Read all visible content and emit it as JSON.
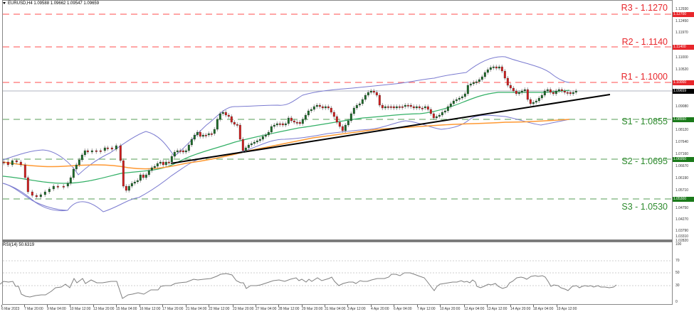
{
  "header": {
    "symbol_info": "EURUSD,H4  1.09588 1.09662 1.09547 1.09659"
  },
  "rsi_panel": {
    "label": "RSI(14) 50.6319",
    "levels": [
      "100",
      "70",
      "50",
      "30",
      "0"
    ]
  },
  "levels": {
    "r3": {
      "label": "R3 - 1.1270",
      "tag": "1.12700",
      "color": "#e8262b"
    },
    "r2": {
      "label": "R2 - 1.1140",
      "tag": "1.11400",
      "color": "#e8262b"
    },
    "r1": {
      "label": "R1 - 1.1000",
      "tag": "1.10000",
      "color": "#e8262b"
    },
    "current": {
      "tag": "1.09659",
      "color": "#000000"
    },
    "s1": {
      "label": "S1 - 1.0855",
      "tag": "1.08550",
      "color": "#1a7a1a"
    },
    "s2": {
      "label": "S2 - 1.0695",
      "tag": "1.06950",
      "color": "#1a7a1a"
    },
    "s3": {
      "label": "S3 - 1.0530",
      "tag": "1.05300",
      "color": "#1a7a1a"
    }
  },
  "price_axis": [
    "1.12930",
    "1.12450",
    "1.11970",
    "1.11000",
    "1.10520",
    "1.09080",
    "1.08120",
    "1.07640",
    "1.07160",
    "1.06670",
    "1.06190",
    "1.05710",
    "1.04750",
    "1.04270",
    "1.03790",
    "1.03310",
    "1.02820"
  ],
  "time_axis": [
    "6 Mar 2023",
    "7 Mar 20:00",
    "9 Mar 04:00",
    "10 Mar 12:00",
    "13 Mar 20:00",
    "15 Mar 04:00",
    "16 Mar 12:00",
    "17 Mar 20:00",
    "21 Mar 04:00",
    "22 Mar 12:00",
    "23 Mar 20:00",
    "27 Mar 04:00",
    "28 Mar 12:00",
    "29 Mar 20:00",
    "31 Mar 04:00",
    "3 Apr 12:00",
    "4 Apr 20:00",
    "6 Apr 04:00",
    "7 Apr 12:00",
    "10 Apr 20:00",
    "12 Apr 04:00",
    "13 Apr 12:00",
    "14 Apr 20:00",
    "18 Apr 04:00",
    "19 Apr 12:00"
  ],
  "chart_data": {
    "type": "candlestick",
    "title": "EURUSD,H4",
    "instrument": "EURUSD",
    "timeframe": "H4",
    "last_ohlc": {
      "open": 1.09588,
      "high": 1.09662,
      "low": 1.09547,
      "close": 1.09659
    },
    "ylim": [
      1.0282,
      1.1293
    ],
    "x_range": [
      "6 Mar 2023",
      "19 Apr 12:00"
    ],
    "horizontal_levels": [
      {
        "name": "R3",
        "value": 1.127,
        "style": "dashed",
        "color": "#ff6666"
      },
      {
        "name": "R2",
        "value": 1.114,
        "style": "dashed",
        "color": "#ff6666"
      },
      {
        "name": "R1",
        "value": 1.1,
        "style": "dashed",
        "color": "#ff6666"
      },
      {
        "name": "S1",
        "value": 1.0855,
        "style": "dashed",
        "color": "#66aa66"
      },
      {
        "name": "S2",
        "value": 1.0695,
        "style": "dashed",
        "color": "#66aa66"
      },
      {
        "name": "S3",
        "value": 1.053,
        "style": "dashed",
        "color": "#66aa66"
      }
    ],
    "trendline": {
      "from": {
        "x": "17 Mar 20:00",
        "y": 1.069
      },
      "to": {
        "x": "20 Apr",
        "y": 1.0952
      },
      "color": "#000000"
    },
    "indicators": [
      {
        "name": "Bollinger Bands",
        "color": "#7777cc"
      },
      {
        "name": "Moving Average (fast)",
        "color": "#33aa66"
      },
      {
        "name": "Moving Average (slow)",
        "color": "#ff9933"
      },
      {
        "name": "RSI(14)",
        "value": 50.6319,
        "levels": [
          30,
          50,
          70
        ],
        "ylim": [
          0,
          100
        ]
      }
    ],
    "approx_close_path": [
      {
        "x": "6 Mar",
        "y": 1.068
      },
      {
        "x": "7 Mar 20:00",
        "y": 1.054
      },
      {
        "x": "9 Mar 04:00",
        "y": 1.058
      },
      {
        "x": "10 Mar 12:00",
        "y": 1.074
      },
      {
        "x": "13 Mar 20:00",
        "y": 1.073
      },
      {
        "x": "15 Mar 04:00",
        "y": 1.059
      },
      {
        "x": "16 Mar 12:00",
        "y": 1.063
      },
      {
        "x": "17 Mar 20:00",
        "y": 1.069
      },
      {
        "x": "21 Mar 04:00",
        "y": 1.078
      },
      {
        "x": "22 Mar 12:00",
        "y": 1.091
      },
      {
        "x": "23 Mar 20:00",
        "y": 1.083
      },
      {
        "x": "27 Mar 04:00",
        "y": 1.078
      },
      {
        "x": "28 Mar 12:00",
        "y": 1.084
      },
      {
        "x": "29 Mar 20:00",
        "y": 1.09
      },
      {
        "x": "31 Mar 04:00",
        "y": 1.083
      },
      {
        "x": "3 Apr 12:00",
        "y": 1.091
      },
      {
        "x": "4 Apr 20:00",
        "y": 1.094
      },
      {
        "x": "6 Apr 04:00",
        "y": 1.09
      },
      {
        "x": "7 Apr 12:00",
        "y": 1.09
      },
      {
        "x": "10 Apr 20:00",
        "y": 1.087
      },
      {
        "x": "12 Apr 04:00",
        "y": 1.098
      },
      {
        "x": "13 Apr 12:00",
        "y": 1.106
      },
      {
        "x": "14 Apr 20:00",
        "y": 1.093
      },
      {
        "x": "18 Apr 04:00",
        "y": 1.097
      },
      {
        "x": "19 Apr 12:00",
        "y": 1.0966
      }
    ]
  }
}
